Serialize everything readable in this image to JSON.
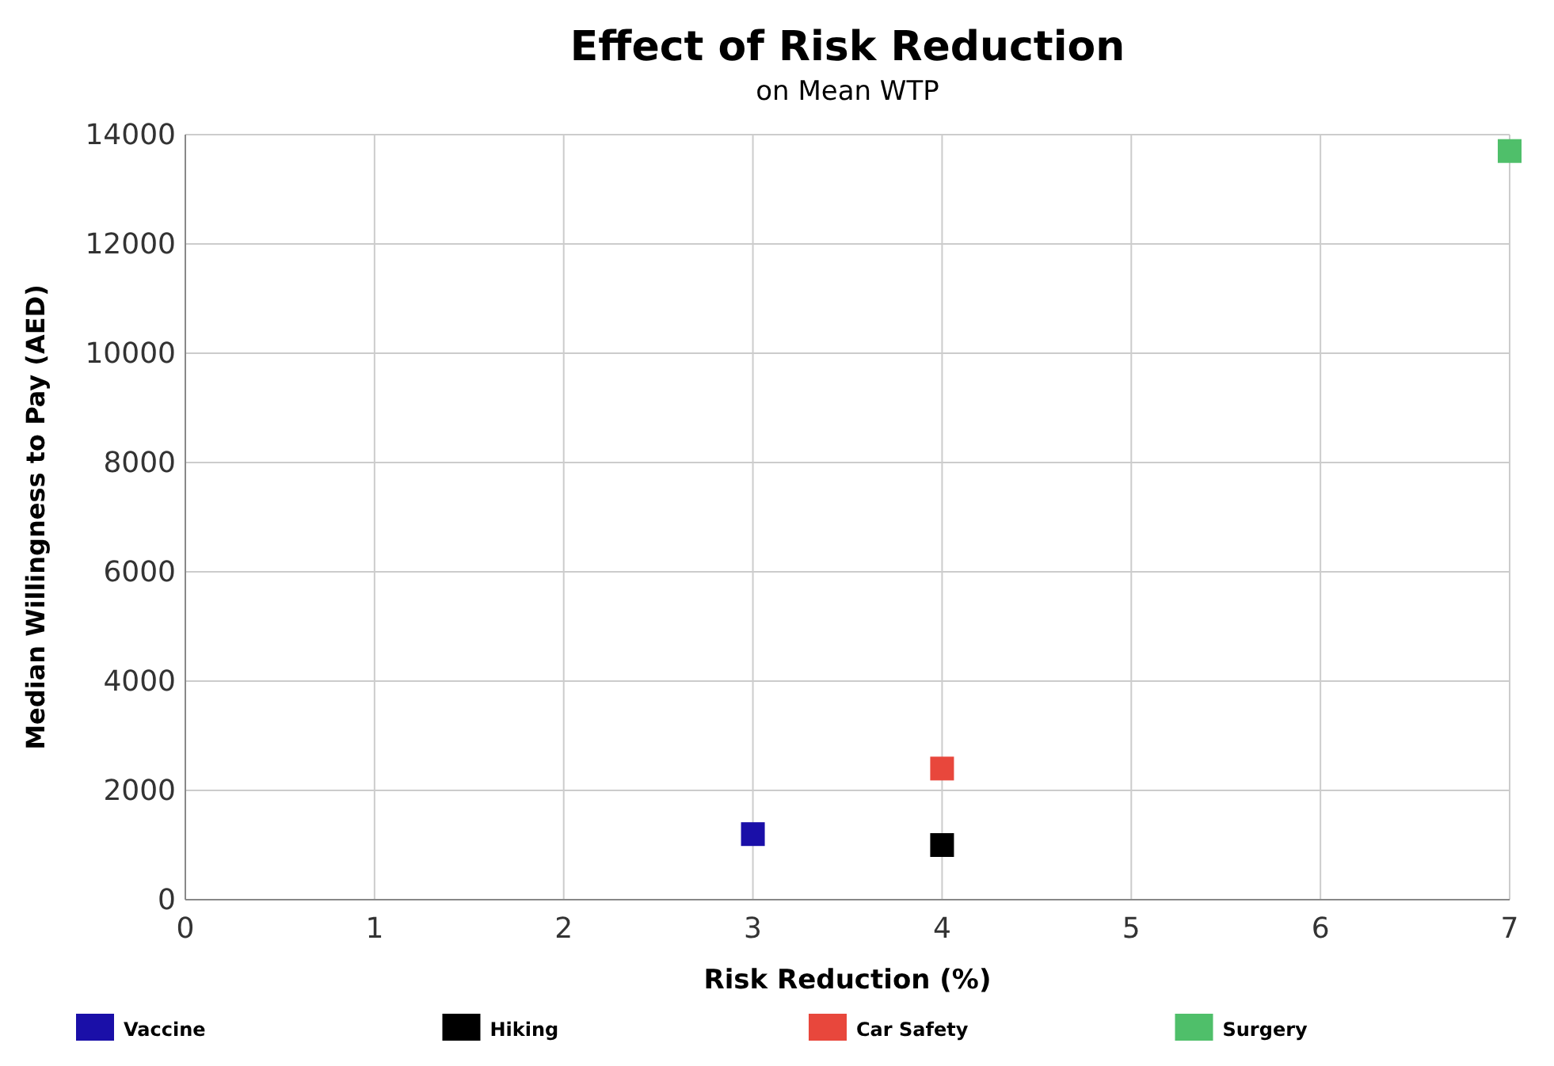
{
  "chart_data": {
    "type": "scatter",
    "title": "Effect of Risk Reduction",
    "subtitle": "on Mean WTP",
    "xlabel": "Risk Reduction (%)",
    "ylabel": "Median Willingness to Pay (AED)",
    "xlim": [
      0,
      7
    ],
    "xticks": [
      0,
      1,
      2,
      3,
      4,
      5,
      6,
      7
    ],
    "ylim": [
      0,
      14000
    ],
    "yticks": [
      0,
      2000,
      4000,
      6000,
      8000,
      10000,
      12000,
      14000
    ],
    "grid": true,
    "legend": "bottom",
    "marker": "square",
    "series": [
      {
        "name": "Vaccine",
        "color": "#1a0fa8",
        "x": [
          3
        ],
        "values": [
          1200
        ]
      },
      {
        "name": "Hiking",
        "color": "#000000",
        "x": [
          4
        ],
        "values": [
          1000
        ]
      },
      {
        "name": "Car Safety",
        "color": "#e8473c",
        "x": [
          4
        ],
        "values": [
          2400
        ]
      },
      {
        "name": "Surgery",
        "color": "#4fbf6a",
        "x": [
          7
        ],
        "values": [
          13700
        ]
      }
    ]
  }
}
